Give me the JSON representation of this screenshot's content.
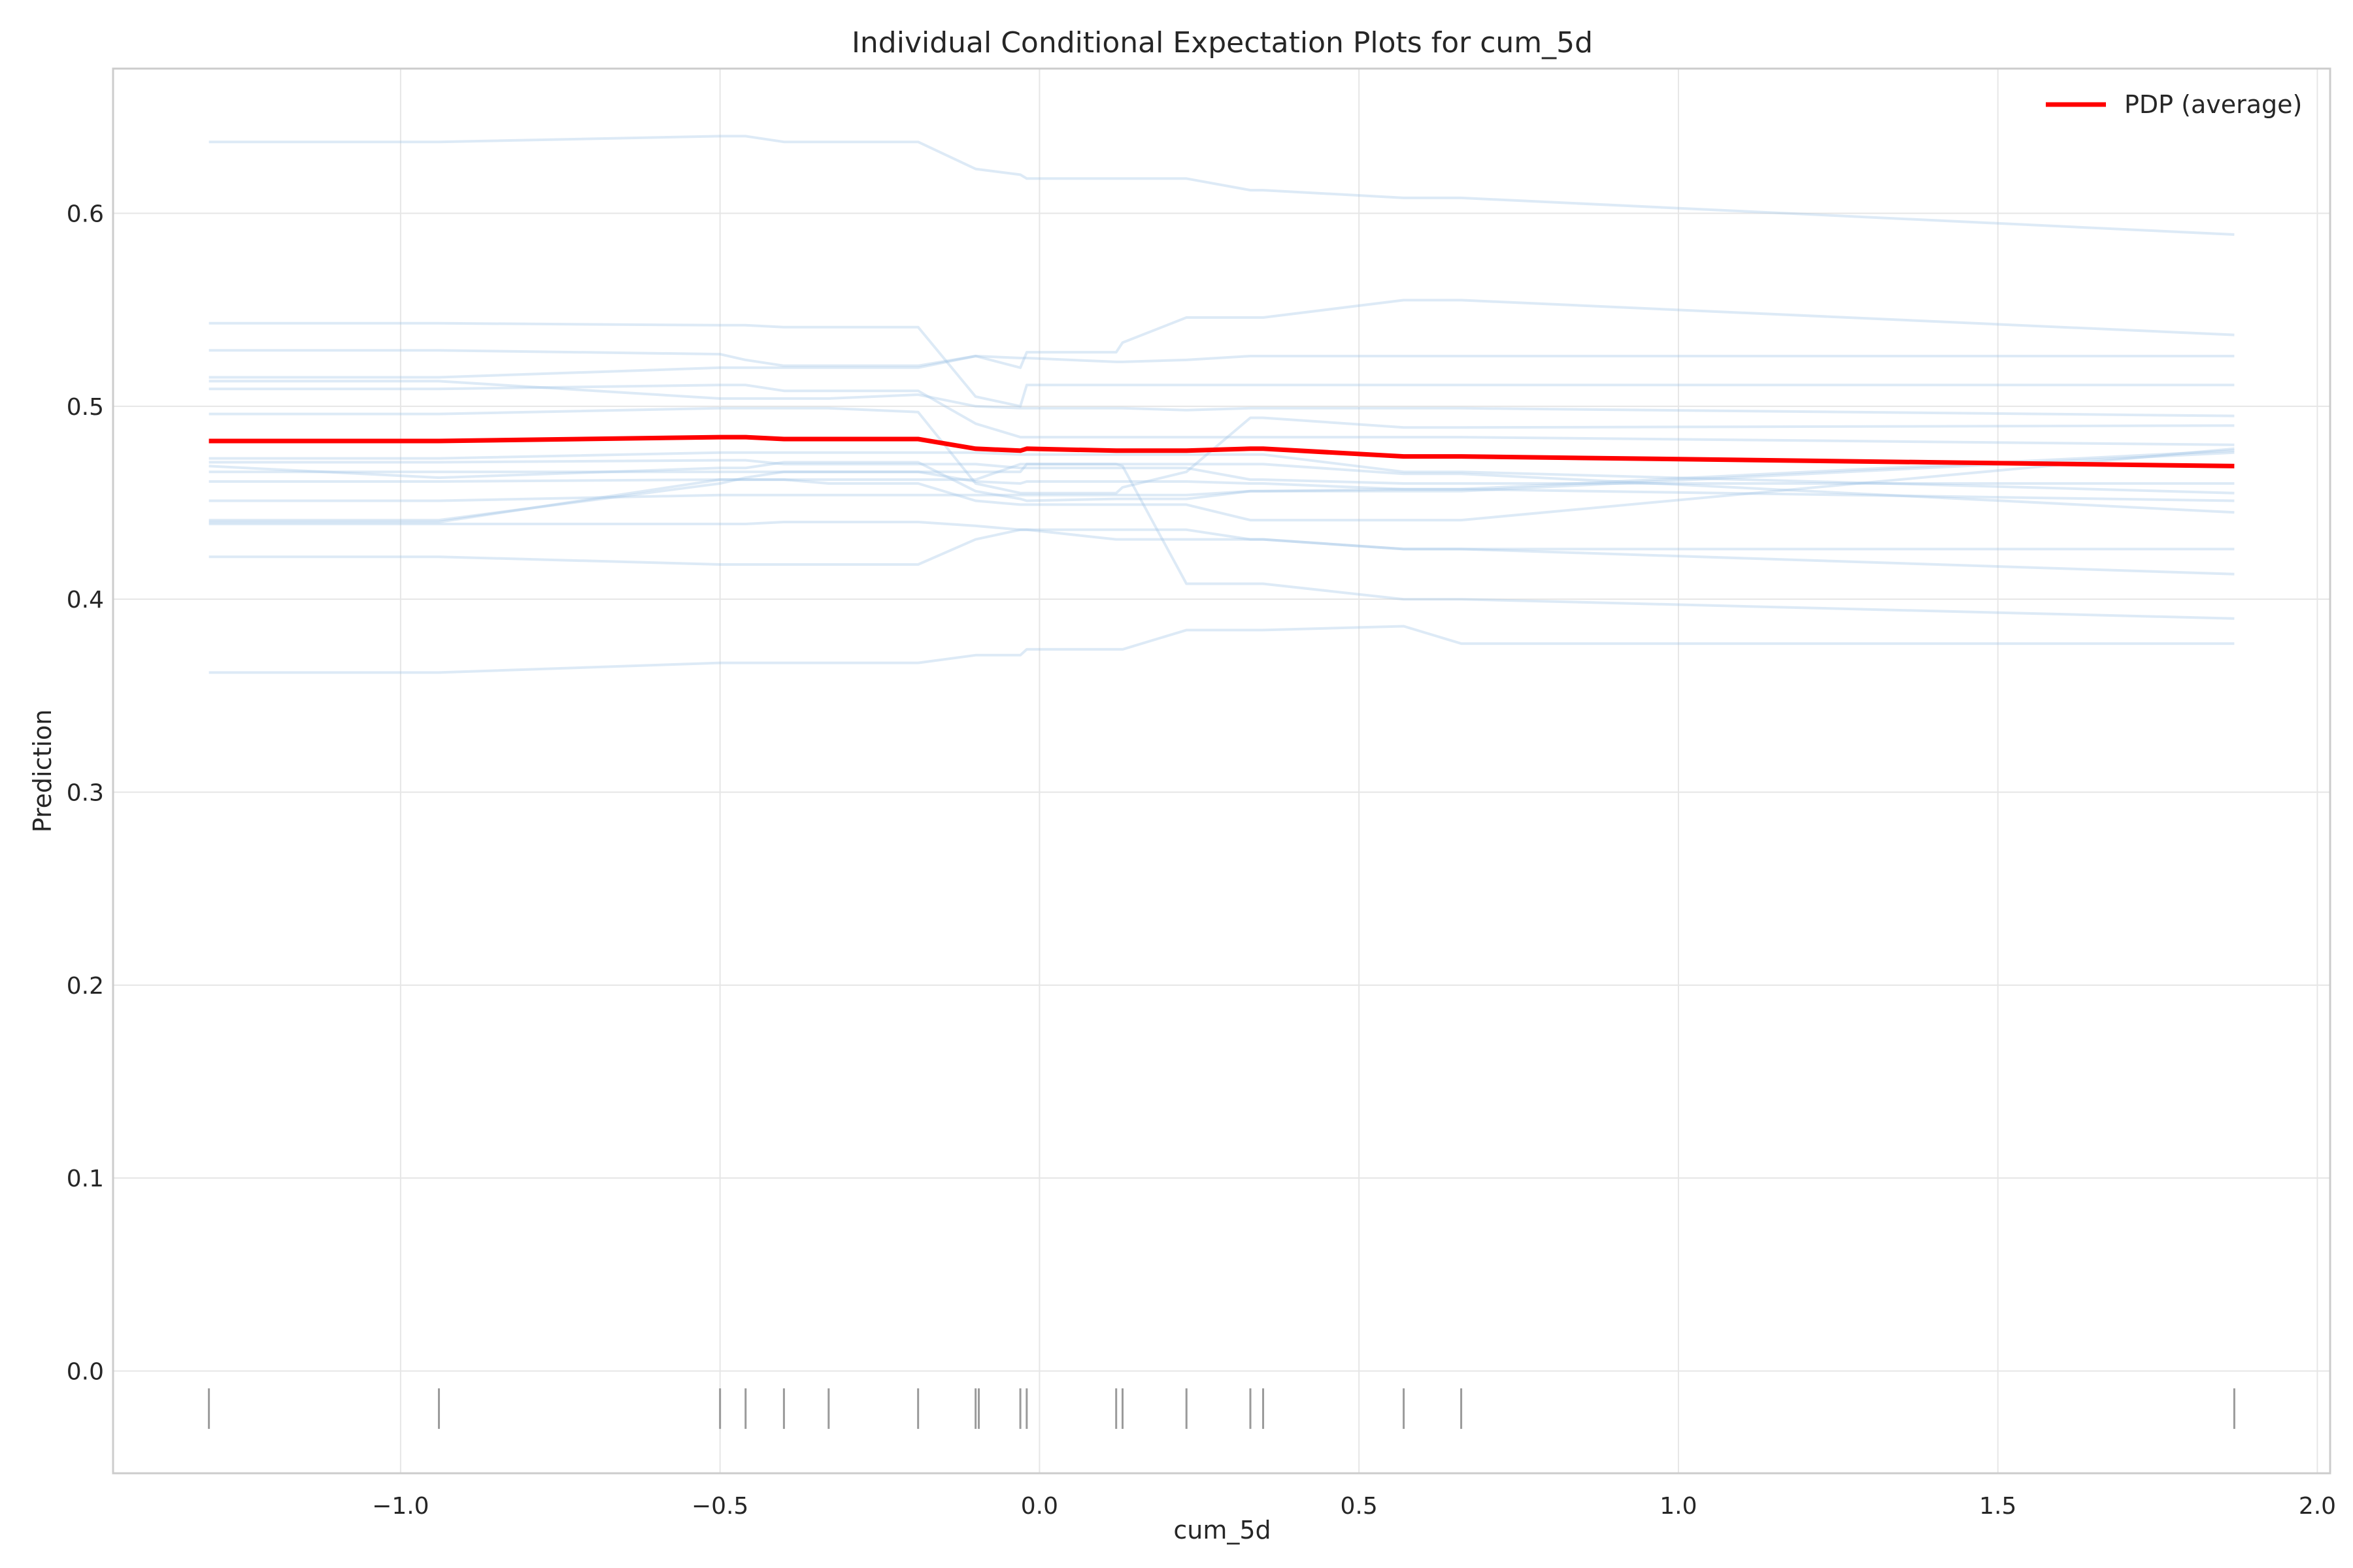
{
  "chart_data": {
    "type": "line",
    "title": "Individual Conditional Expectation Plots for cum_5d",
    "xlabel": "cum_5d",
    "ylabel": "Prediction",
    "xlim": [
      -1.45,
      2.02
    ],
    "ylim": [
      -0.053,
      0.675
    ],
    "x_ticks": [
      -1.0,
      -0.5,
      0.0,
      0.5,
      1.0,
      1.5,
      2.0
    ],
    "x_tick_labels": [
      "−1.0",
      "−0.5",
      "0.0",
      "0.5",
      "1.0",
      "1.5",
      "2.0"
    ],
    "y_ticks": [
      0.0,
      0.1,
      0.2,
      0.3,
      0.4,
      0.5,
      0.6
    ],
    "y_tick_labels": [
      "0.0",
      "0.1",
      "0.2",
      "0.3",
      "0.4",
      "0.5",
      "0.6"
    ],
    "grid": true,
    "legend": {
      "position": "top-right",
      "entries": [
        "PDP (average)"
      ]
    },
    "x": [
      -1.3,
      -0.94,
      -0.5,
      -0.46,
      -0.4,
      -0.33,
      -0.19,
      -0.1,
      -0.03,
      -0.02,
      0.12,
      0.13,
      0.23,
      0.33,
      0.35,
      0.57,
      0.66,
      1.87
    ],
    "rug": [
      -1.3,
      -0.94,
      -0.5,
      -0.46,
      -0.4,
      -0.33,
      -0.19,
      -0.1,
      -0.095,
      -0.03,
      -0.02,
      0.12,
      0.13,
      0.23,
      0.33,
      0.35,
      0.57,
      0.66,
      1.87
    ],
    "pdp": {
      "name": "PDP (average)",
      "color": "#ff0000",
      "values": [
        0.482,
        0.482,
        0.484,
        0.484,
        0.483,
        0.483,
        0.483,
        0.478,
        0.477,
        0.478,
        0.477,
        0.477,
        0.477,
        0.478,
        0.478,
        0.474,
        0.474,
        0.469
      ]
    },
    "ice_color": "#9ec4e6",
    "rug_color": "#9a9a9a",
    "ice": [
      [
        0.637,
        0.637,
        0.64,
        0.64,
        0.637,
        0.637,
        0.637,
        0.623,
        0.62,
        0.618,
        0.618,
        0.618,
        0.618,
        0.612,
        0.612,
        0.608,
        0.608,
        0.589
      ],
      [
        0.543,
        0.543,
        0.542,
        0.542,
        0.541,
        0.541,
        0.541,
        0.505,
        0.5,
        0.511,
        0.511,
        0.511,
        0.511,
        0.511,
        0.511,
        0.511,
        0.511,
        0.511
      ],
      [
        0.529,
        0.529,
        0.527,
        0.524,
        0.521,
        0.521,
        0.521,
        0.526,
        0.52,
        0.528,
        0.528,
        0.533,
        0.546,
        0.546,
        0.546,
        0.555,
        0.555,
        0.537
      ],
      [
        0.515,
        0.515,
        0.52,
        0.52,
        0.52,
        0.52,
        0.52,
        0.526,
        0.525,
        0.525,
        0.523,
        0.523,
        0.524,
        0.526,
        0.526,
        0.526,
        0.526,
        0.526
      ],
      [
        0.513,
        0.513,
        0.504,
        0.504,
        0.504,
        0.504,
        0.506,
        0.5,
        0.499,
        0.499,
        0.499,
        0.499,
        0.498,
        0.499,
        0.499,
        0.499,
        0.499,
        0.495
      ],
      [
        0.509,
        0.509,
        0.511,
        0.511,
        0.508,
        0.508,
        0.508,
        0.491,
        0.484,
        0.484,
        0.484,
        0.484,
        0.484,
        0.484,
        0.484,
        0.484,
        0.484,
        0.48
      ],
      [
        0.496,
        0.496,
        0.499,
        0.499,
        0.499,
        0.499,
        0.497,
        0.46,
        0.455,
        0.455,
        0.455,
        0.458,
        0.466,
        0.494,
        0.494,
        0.489,
        0.489,
        0.49
      ],
      [
        0.473,
        0.473,
        0.476,
        0.476,
        0.476,
        0.476,
        0.476,
        0.476,
        0.475,
        0.475,
        0.475,
        0.475,
        0.475,
        0.475,
        0.475,
        0.466,
        0.466,
        0.455
      ],
      [
        0.471,
        0.471,
        0.472,
        0.472,
        0.47,
        0.47,
        0.47,
        0.47,
        0.468,
        0.468,
        0.468,
        0.468,
        0.468,
        0.462,
        0.462,
        0.46,
        0.46,
        0.46
      ],
      [
        0.469,
        0.463,
        0.468,
        0.468,
        0.471,
        0.471,
        0.471,
        0.456,
        0.452,
        0.451,
        0.452,
        0.452,
        0.452,
        0.456,
        0.456,
        0.457,
        0.457,
        0.477
      ],
      [
        0.466,
        0.466,
        0.466,
        0.466,
        0.466,
        0.466,
        0.466,
        0.466,
        0.466,
        0.47,
        0.47,
        0.47,
        0.47,
        0.47,
        0.47,
        0.465,
        0.465,
        0.445
      ],
      [
        0.461,
        0.461,
        0.462,
        0.462,
        0.462,
        0.46,
        0.46,
        0.451,
        0.449,
        0.449,
        0.449,
        0.449,
        0.449,
        0.441,
        0.441,
        0.441,
        0.441,
        0.478
      ],
      [
        0.451,
        0.451,
        0.454,
        0.454,
        0.454,
        0.454,
        0.454,
        0.454,
        0.454,
        0.454,
        0.454,
        0.454,
        0.454,
        0.456,
        0.456,
        0.456,
        0.456,
        0.476
      ],
      [
        0.441,
        0.441,
        0.46,
        0.463,
        0.466,
        0.466,
        0.466,
        0.461,
        0.46,
        0.461,
        0.461,
        0.461,
        0.461,
        0.46,
        0.46,
        0.457,
        0.457,
        0.451
      ],
      [
        0.439,
        0.439,
        0.439,
        0.439,
        0.44,
        0.44,
        0.44,
        0.438,
        0.436,
        0.436,
        0.436,
        0.436,
        0.436,
        0.431,
        0.431,
        0.426,
        0.426,
        0.413
      ],
      [
        0.422,
        0.422,
        0.418,
        0.418,
        0.418,
        0.418,
        0.418,
        0.431,
        0.436,
        0.436,
        0.431,
        0.431,
        0.431,
        0.431,
        0.431,
        0.426,
        0.426,
        0.426
      ],
      [
        0.44,
        0.44,
        0.462,
        0.462,
        0.462,
        0.462,
        0.462,
        0.462,
        0.47,
        0.47,
        0.47,
        0.469,
        0.408,
        0.408,
        0.408,
        0.4,
        0.4,
        0.39
      ],
      [
        0.362,
        0.362,
        0.367,
        0.367,
        0.367,
        0.367,
        0.367,
        0.371,
        0.371,
        0.374,
        0.374,
        0.374,
        0.384,
        0.384,
        0.384,
        0.386,
        0.377,
        0.377
      ]
    ]
  }
}
